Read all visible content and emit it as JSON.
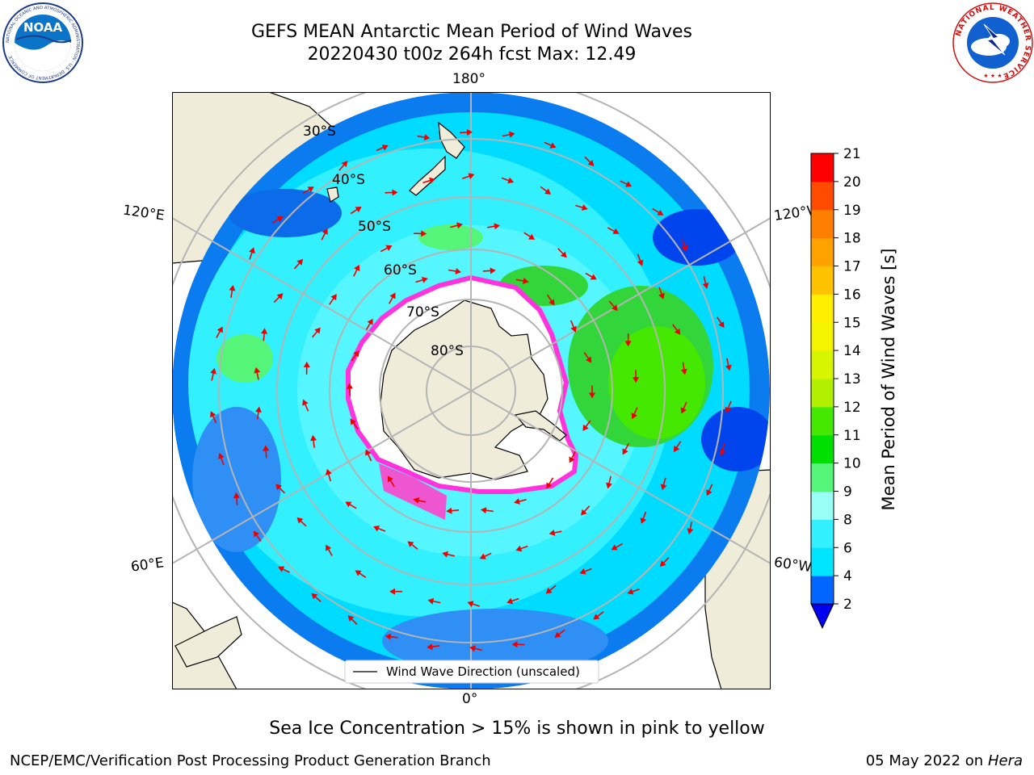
{
  "title": {
    "line1": "GEFS MEAN Antarctic Mean Period of Wind Waves",
    "line2": "20220430 t00z 264h fcst   Max: 12.49"
  },
  "logos": {
    "left": "NOAA",
    "left_ring_text": "NATIONAL OCEANIC AND ATMOSPHERIC ADMINISTRATION · U.S. DEPARTMENT OF COMMERCE",
    "right_ring_text": "NATIONAL WEATHER SERVICE"
  },
  "map": {
    "projection": "south-polar-stereographic",
    "lon_labels": {
      "top": "180°",
      "bottom": "0°",
      "upper_left": "120°E",
      "lower_left": "60°E",
      "upper_right": "120°W",
      "lower_right": "60°W"
    },
    "lat_labels": [
      "30°S",
      "40°S",
      "50°S",
      "60°S",
      "70°S",
      "80°S"
    ],
    "legend_label": "Wind Wave Direction (unscaled)",
    "colors": {
      "land": "#efedda",
      "ice_edge": "#ff33dd",
      "arrow": "#ee0000",
      "grid": "#b4b4b4"
    }
  },
  "colorbar": {
    "label": "Mean Period of Wind Waves [s]",
    "ticks": [
      2,
      4,
      6,
      8,
      9,
      10,
      11,
      12,
      13,
      14,
      15,
      16,
      17,
      18,
      19,
      20,
      21
    ],
    "colors": [
      "#0066ff",
      "#00e5ff",
      "#33f0ff",
      "#99fff7",
      "#55f57a",
      "#00e000",
      "#44e800",
      "#b0f000",
      "#d8f500",
      "#f4f400",
      "#ffee00",
      "#ffc200",
      "#ffa200",
      "#ff8000",
      "#ff4b00",
      "#ff0000"
    ],
    "extend_color": "#0000ee"
  },
  "footer": {
    "caption": "Sea Ice Concentration > 15% is shown in pink to yellow",
    "credit": "NCEP/EMC/Verification Post Processing Product Generation Branch",
    "date": "05 May 2022 on",
    "host": "Hera"
  }
}
